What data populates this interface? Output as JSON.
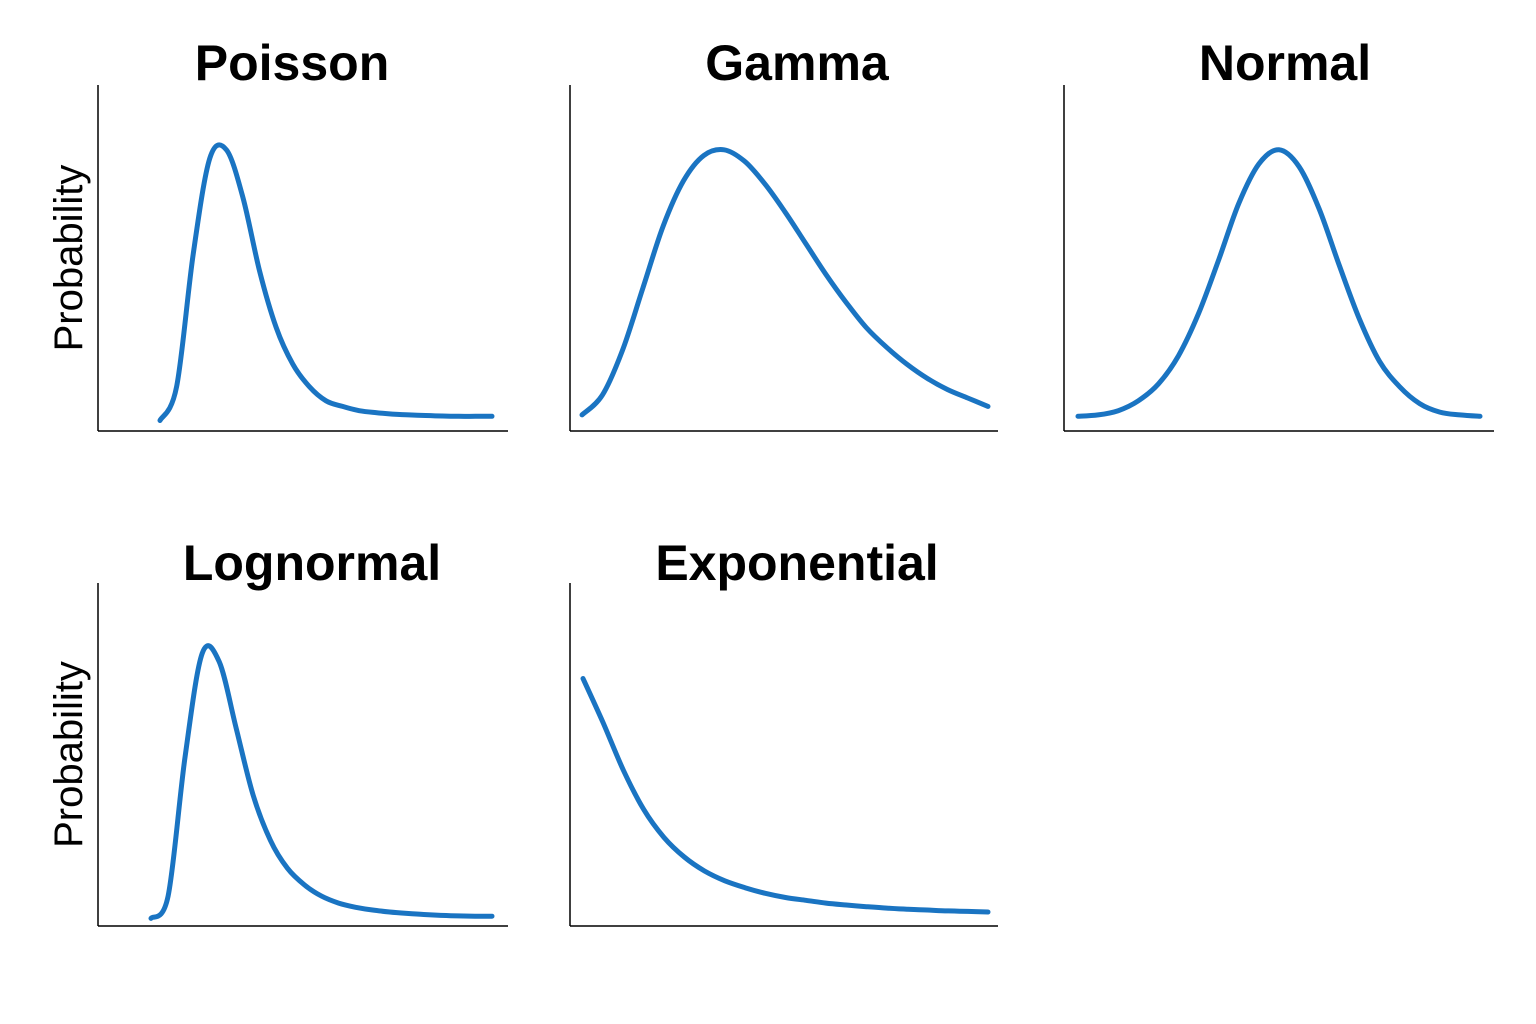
{
  "colors": {
    "curve": "#1a74c2",
    "axis": "#000000"
  },
  "chart_data": [
    {
      "type": "line",
      "title": "Poisson",
      "ylabel": "Probability",
      "xlabel": "",
      "x": [
        0,
        0.05,
        0.1,
        0.15,
        0.2,
        0.25,
        0.3,
        0.35,
        0.4,
        0.45,
        0.5,
        0.55,
        0.6,
        0.65,
        0.7,
        0.75,
        0.8,
        0.85,
        0.9,
        0.95,
        1.0
      ],
      "y": [
        0.03,
        0.15,
        0.62,
        0.96,
        0.99,
        0.82,
        0.56,
        0.36,
        0.23,
        0.15,
        0.1,
        0.08,
        0.065,
        0.058,
        0.053,
        0.05,
        0.048,
        0.046,
        0.045,
        0.045,
        0.045
      ]
    },
    {
      "type": "line",
      "title": "Gamma",
      "ylabel": "",
      "xlabel": "",
      "x": [
        0,
        0.05,
        0.1,
        0.15,
        0.2,
        0.25,
        0.3,
        0.35,
        0.4,
        0.45,
        0.5,
        0.55,
        0.6,
        0.65,
        0.7,
        0.75,
        0.8,
        0.85,
        0.9,
        0.95,
        1.0
      ],
      "y": [
        0.05,
        0.12,
        0.28,
        0.5,
        0.72,
        0.88,
        0.97,
        0.99,
        0.95,
        0.87,
        0.77,
        0.66,
        0.55,
        0.45,
        0.36,
        0.29,
        0.23,
        0.18,
        0.14,
        0.11,
        0.08
      ]
    },
    {
      "type": "line",
      "title": "Normal",
      "ylabel": "",
      "xlabel": "",
      "x": [
        0,
        0.05,
        0.1,
        0.15,
        0.2,
        0.25,
        0.3,
        0.35,
        0.4,
        0.45,
        0.5,
        0.55,
        0.6,
        0.65,
        0.7,
        0.75,
        0.8,
        0.85,
        0.9,
        0.95,
        1.0
      ],
      "y": [
        0.045,
        0.05,
        0.065,
        0.1,
        0.16,
        0.26,
        0.41,
        0.6,
        0.8,
        0.94,
        0.99,
        0.93,
        0.78,
        0.58,
        0.39,
        0.24,
        0.15,
        0.09,
        0.06,
        0.05,
        0.045
      ]
    },
    {
      "type": "line",
      "title": "Lognormal",
      "ylabel": "Probability",
      "xlabel": "",
      "x": [
        0,
        0.05,
        0.1,
        0.15,
        0.2,
        0.25,
        0.3,
        0.35,
        0.4,
        0.45,
        0.5,
        0.55,
        0.6,
        0.65,
        0.7,
        0.75,
        0.8,
        0.85,
        0.9,
        0.95,
        1.0
      ],
      "y": [
        0.02,
        0.1,
        0.6,
        0.97,
        0.94,
        0.7,
        0.46,
        0.3,
        0.2,
        0.14,
        0.1,
        0.075,
        0.06,
        0.05,
        0.043,
        0.038,
        0.034,
        0.031,
        0.029,
        0.028,
        0.028
      ]
    },
    {
      "type": "line",
      "title": "Exponential",
      "ylabel": "",
      "xlabel": "",
      "x": [
        0,
        0.05,
        0.1,
        0.15,
        0.2,
        0.25,
        0.3,
        0.35,
        0.4,
        0.45,
        0.5,
        0.55,
        0.6,
        0.65,
        0.7,
        0.75,
        0.8,
        0.85,
        0.9,
        0.95,
        1.0
      ],
      "y": [
        0.88,
        0.72,
        0.55,
        0.41,
        0.31,
        0.24,
        0.19,
        0.155,
        0.13,
        0.11,
        0.095,
        0.085,
        0.075,
        0.068,
        0.062,
        0.057,
        0.053,
        0.05,
        0.047,
        0.045,
        0.043
      ]
    }
  ]
}
